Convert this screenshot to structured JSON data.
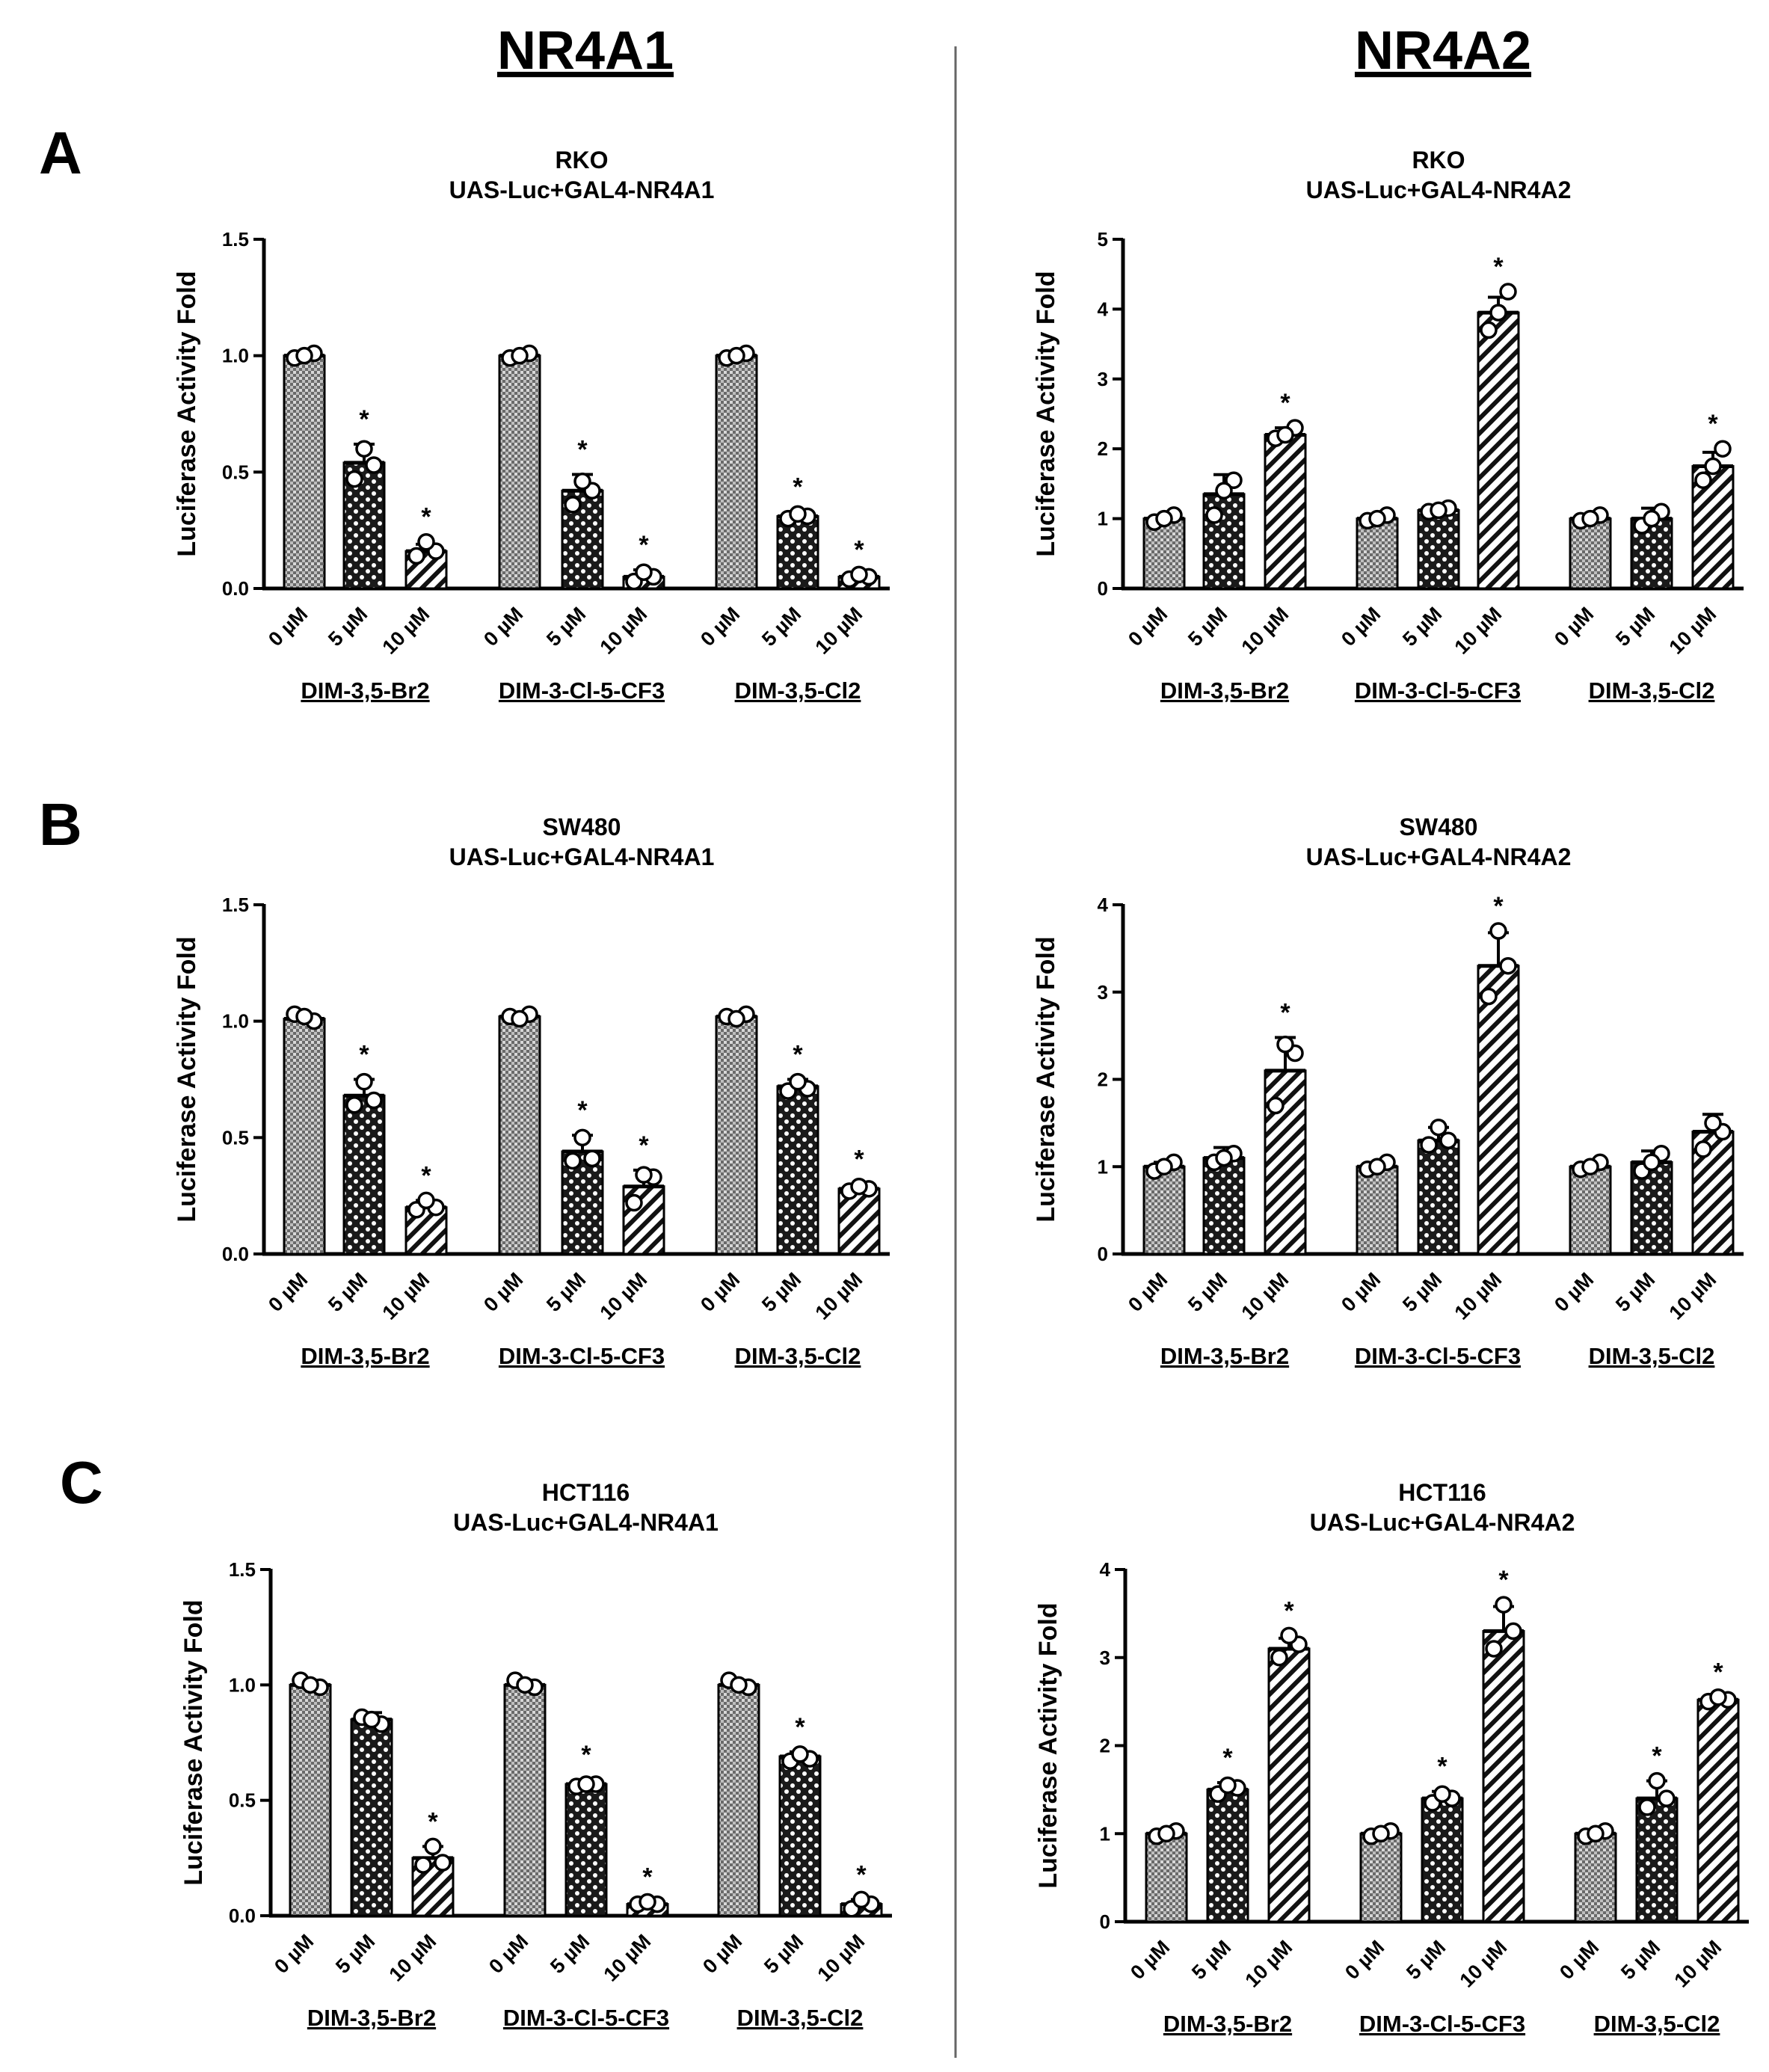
{
  "figure": {
    "column_titles": [
      "NR4A1",
      "NR4A2"
    ],
    "panel_letters": [
      "A",
      "B",
      "C"
    ]
  },
  "chart_data": [
    {
      "type": "bar",
      "panel": "A",
      "column": "NR4A1",
      "title": [
        "RKO",
        "UAS-Luc+GAL4-NR4A1"
      ],
      "ylabel": "Luciferase Activity Fold",
      "ylim": [
        0,
        1.5
      ],
      "yticks": [
        0.0,
        0.5,
        1.0,
        1.5
      ],
      "tick_decimals": 1,
      "categories": [
        "0 µM",
        "5 µM",
        "10 µM"
      ],
      "groups": [
        "DIM-3,5-Br2",
        "DIM-3-Cl-5-CF3",
        "DIM-3,5-Cl2"
      ],
      "values": [
        [
          1.0,
          0.54,
          0.16
        ],
        [
          1.0,
          0.42,
          0.05
        ],
        [
          1.0,
          0.31,
          0.05
        ]
      ],
      "errors": [
        [
          0.01,
          0.08,
          0.03
        ],
        [
          0.01,
          0.07,
          0.03
        ],
        [
          0.01,
          0.02,
          0.01
        ]
      ],
      "points": [
        [
          [
            0.99,
            1.01,
            1.0
          ],
          [
            0.47,
            0.53,
            0.6
          ],
          [
            0.14,
            0.16,
            0.2
          ]
        ],
        [
          [
            0.99,
            1.01,
            1.0
          ],
          [
            0.36,
            0.42,
            0.46
          ],
          [
            0.03,
            0.05,
            0.07
          ]
        ],
        [
          [
            0.99,
            1.01,
            1.0
          ],
          [
            0.3,
            0.31,
            0.32
          ],
          [
            0.04,
            0.05,
            0.06
          ]
        ]
      ],
      "significant": [
        [
          false,
          true,
          true
        ],
        [
          false,
          true,
          true
        ],
        [
          false,
          true,
          true
        ]
      ],
      "sig_label": "*"
    },
    {
      "type": "bar",
      "panel": "A",
      "column": "NR4A2",
      "title": [
        "RKO",
        "UAS-Luc+GAL4-NR4A2"
      ],
      "ylabel": "Luciferase Activity Fold",
      "ylim": [
        0,
        5
      ],
      "yticks": [
        0,
        1,
        2,
        3,
        4,
        5
      ],
      "tick_decimals": 0,
      "categories": [
        "0 µM",
        "5 µM",
        "10 µM"
      ],
      "groups": [
        "DIM-3,5-Br2",
        "DIM-3-Cl-5-CF3",
        "DIM-3,5-Cl2"
      ],
      "values": [
        [
          1.0,
          1.35,
          2.2
        ],
        [
          1.0,
          1.12,
          3.95
        ],
        [
          1.0,
          1.0,
          1.75
        ]
      ],
      "errors": [
        [
          0.05,
          0.28,
          0.1
        ],
        [
          0.03,
          0.05,
          0.22
        ],
        [
          0.05,
          0.15,
          0.2
        ]
      ],
      "points": [
        [
          [
            0.95,
            1.05,
            1.0
          ],
          [
            1.05,
            1.55,
            1.4
          ],
          [
            2.15,
            2.3,
            2.2
          ]
        ],
        [
          [
            0.97,
            1.05,
            1.0
          ],
          [
            1.1,
            1.15,
            1.12
          ],
          [
            3.7,
            4.25,
            3.95
          ]
        ],
        [
          [
            0.97,
            1.05,
            1.0
          ],
          [
            0.9,
            1.1,
            1.0
          ],
          [
            1.55,
            2.0,
            1.75
          ]
        ]
      ],
      "significant": [
        [
          false,
          false,
          true
        ],
        [
          false,
          false,
          true
        ],
        [
          false,
          false,
          true
        ]
      ],
      "sig_label": "*"
    },
    {
      "type": "bar",
      "panel": "B",
      "column": "NR4A1",
      "title": [
        "SW480",
        "UAS-Luc+GAL4-NR4A1"
      ],
      "ylabel": "Luciferase Activity Fold",
      "ylim": [
        0,
        1.5
      ],
      "yticks": [
        0.0,
        0.5,
        1.0,
        1.5
      ],
      "tick_decimals": 1,
      "categories": [
        "0 µM",
        "5 µM",
        "10 µM"
      ],
      "groups": [
        "DIM-3,5-Br2",
        "DIM-3-Cl-5-CF3",
        "DIM-3,5-Cl2"
      ],
      "values": [
        [
          1.01,
          0.68,
          0.2
        ],
        [
          1.02,
          0.44,
          0.29
        ],
        [
          1.02,
          0.72,
          0.28
        ]
      ],
      "errors": [
        [
          0.02,
          0.07,
          0.03
        ],
        [
          0.01,
          0.07,
          0.07
        ],
        [
          0.01,
          0.03,
          0.02
        ]
      ],
      "points": [
        [
          [
            1.03,
            1.0,
            1.02
          ],
          [
            0.64,
            0.66,
            0.74
          ],
          [
            0.19,
            0.2,
            0.23
          ]
        ],
        [
          [
            1.02,
            1.03,
            1.01
          ],
          [
            0.4,
            0.41,
            0.5
          ],
          [
            0.22,
            0.33,
            0.34
          ]
        ],
        [
          [
            1.02,
            1.03,
            1.01
          ],
          [
            0.7,
            0.71,
            0.74
          ],
          [
            0.27,
            0.28,
            0.29
          ]
        ]
      ],
      "significant": [
        [
          false,
          true,
          true
        ],
        [
          false,
          true,
          true
        ],
        [
          false,
          true,
          true
        ]
      ],
      "sig_label": "*"
    },
    {
      "type": "bar",
      "panel": "B",
      "column": "NR4A2",
      "title": [
        "SW480",
        "UAS-Luc+GAL4-NR4A2"
      ],
      "ylabel": "Luciferase Activity Fold",
      "ylim": [
        0,
        4
      ],
      "yticks": [
        0,
        1,
        2,
        3,
        4
      ],
      "tick_decimals": 0,
      "categories": [
        "0 µM",
        "5 µM",
        "10 µM"
      ],
      "groups": [
        "DIM-3,5-Br2",
        "DIM-3-Cl-5-CF3",
        "DIM-3,5-Cl2"
      ],
      "values": [
        [
          1.0,
          1.1,
          2.1
        ],
        [
          1.0,
          1.3,
          3.3
        ],
        [
          1.0,
          1.05,
          1.4
        ]
      ],
      "errors": [
        [
          0.05,
          0.12,
          0.38
        ],
        [
          0.04,
          0.15,
          0.38
        ],
        [
          0.04,
          0.13,
          0.2
        ]
      ],
      "points": [
        [
          [
            0.95,
            1.05,
            1.0
          ],
          [
            1.05,
            1.15,
            1.1
          ],
          [
            1.7,
            2.3,
            2.4
          ]
        ],
        [
          [
            0.97,
            1.05,
            1.0
          ],
          [
            1.25,
            1.3,
            1.45
          ],
          [
            2.95,
            3.3,
            3.7
          ]
        ],
        [
          [
            0.97,
            1.05,
            1.0
          ],
          [
            0.95,
            1.15,
            1.05
          ],
          [
            1.2,
            1.4,
            1.5
          ]
        ]
      ],
      "significant": [
        [
          false,
          false,
          true
        ],
        [
          false,
          false,
          true
        ],
        [
          false,
          false,
          false
        ]
      ],
      "sig_label": "*"
    },
    {
      "type": "bar",
      "panel": "C",
      "column": "NR4A1",
      "title": [
        "HCT116",
        "UAS-Luc+GAL4-NR4A1"
      ],
      "ylabel": "Luciferase Activity Fold",
      "ylim": [
        0,
        1.5
      ],
      "yticks": [
        0.0,
        0.5,
        1.0,
        1.5
      ],
      "tick_decimals": 1,
      "categories": [
        "0 µM",
        "5 µM",
        "10 µM"
      ],
      "groups": [
        "DIM-3,5-Br2",
        "DIM-3-Cl-5-CF3",
        "DIM-3,5-Cl2"
      ],
      "values": [
        [
          1.0,
          0.85,
          0.25
        ],
        [
          1.0,
          0.57,
          0.05
        ],
        [
          1.0,
          0.69,
          0.05
        ]
      ],
      "errors": [
        [
          0.02,
          0.03,
          0.05
        ],
        [
          0.02,
          0.02,
          0.01
        ],
        [
          0.02,
          0.02,
          0.02
        ]
      ],
      "points": [
        [
          [
            1.02,
            0.99,
            1.0
          ],
          [
            0.86,
            0.83,
            0.85
          ],
          [
            0.22,
            0.23,
            0.3
          ]
        ],
        [
          [
            1.02,
            0.99,
            1.0
          ],
          [
            0.56,
            0.57,
            0.57
          ],
          [
            0.05,
            0.05,
            0.06
          ]
        ],
        [
          [
            1.02,
            0.99,
            1.0
          ],
          [
            0.67,
            0.68,
            0.7
          ],
          [
            0.03,
            0.05,
            0.07
          ]
        ]
      ],
      "significant": [
        [
          false,
          false,
          true
        ],
        [
          false,
          true,
          true
        ],
        [
          false,
          true,
          true
        ]
      ],
      "sig_label": "*"
    },
    {
      "type": "bar",
      "panel": "C",
      "column": "NR4A2",
      "title": [
        "HCT116",
        "UAS-Luc+GAL4-NR4A2"
      ],
      "ylabel": "Luciferase Activity Fold",
      "ylim": [
        0,
        4
      ],
      "yticks": [
        0,
        1,
        2,
        3,
        4
      ],
      "tick_decimals": 0,
      "categories": [
        "0 µM",
        "5 µM",
        "10 µM"
      ],
      "groups": [
        "DIM-3,5-Br2",
        "DIM-3-Cl-5-CF3",
        "DIM-3,5-Cl2"
      ],
      "values": [
        [
          1.0,
          1.5,
          3.1
        ],
        [
          1.0,
          1.4,
          3.3
        ],
        [
          1.0,
          1.4,
          2.52
        ]
      ],
      "errors": [
        [
          0.04,
          0.08,
          0.12
        ],
        [
          0.04,
          0.08,
          0.28
        ],
        [
          0.04,
          0.2,
          0.03
        ]
      ],
      "points": [
        [
          [
            0.97,
            1.03,
            1.0
          ],
          [
            1.45,
            1.52,
            1.55
          ],
          [
            3.0,
            3.15,
            3.25
          ]
        ],
        [
          [
            0.97,
            1.03,
            1.0
          ],
          [
            1.35,
            1.4,
            1.45
          ],
          [
            3.1,
            3.3,
            3.6
          ]
        ],
        [
          [
            0.97,
            1.03,
            1.0
          ],
          [
            1.3,
            1.4,
            1.6
          ],
          [
            2.5,
            2.52,
            2.55
          ]
        ]
      ],
      "significant": [
        [
          false,
          true,
          true
        ],
        [
          false,
          true,
          true
        ],
        [
          false,
          true,
          true
        ]
      ],
      "sig_label": "*"
    }
  ]
}
